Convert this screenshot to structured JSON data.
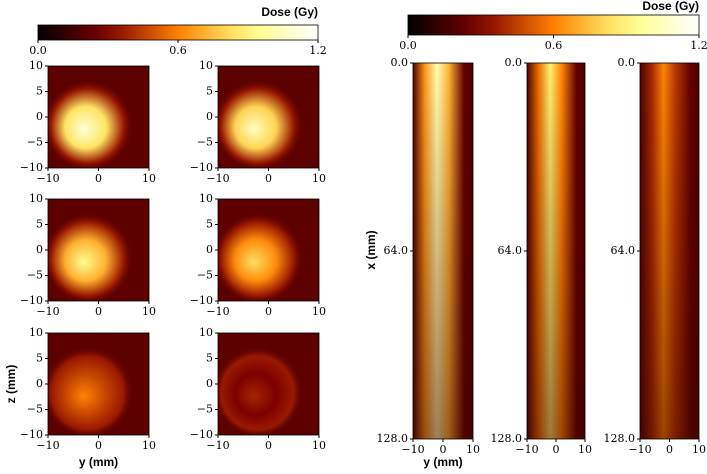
{
  "colorbars": [
    {
      "label": "Dose (Gy)",
      "lim": [
        0,
        1.2
      ],
      "ticks": [
        {
          "value": 0,
          "label": "0.0"
        },
        0.6,
        1.2
      ]
    },
    {
      "label": "Dose (Gy)",
      "lim": [
        0,
        1.2
      ],
      "ticks": [
        {
          "value": 0,
          "label": "0.0"
        },
        0.6,
        1.2
      ]
    }
  ],
  "chart_data": [
    {
      "type": "heatmap",
      "xlim": [
        -10,
        10
      ],
      "ylim": [
        -10,
        10
      ],
      "xticks": [
        {
          "value": -10,
          "label": "−10"
        },
        0,
        10
      ],
      "yticks": [
        {
          "value": -10,
          "label": "−10"
        },
        {
          "value": -5,
          "label": "−5"
        },
        0,
        5,
        10
      ]
    },
    {
      "type": "heatmap",
      "xlim": [
        -10,
        10
      ],
      "ylim": [
        -10,
        10
      ],
      "xticks": [
        {
          "value": -10,
          "label": "−10"
        },
        0,
        10
      ],
      "yticks": [
        {
          "value": -10,
          "label": "−10"
        },
        {
          "value": -5,
          "label": "−5"
        },
        0,
        5,
        10
      ]
    },
    {
      "type": "heatmap",
      "xlim": [
        -10,
        10
      ],
      "ylim": [
        -10,
        10
      ],
      "xticks": [
        {
          "value": -10,
          "label": "−10"
        },
        0,
        10
      ],
      "yticks": [
        {
          "value": -10,
          "label": "−10"
        },
        {
          "value": -5,
          "label": "−5"
        },
        0,
        5,
        10
      ]
    },
    {
      "type": "heatmap",
      "xlim": [
        -10,
        10
      ],
      "ylim": [
        -10,
        10
      ],
      "xticks": [
        {
          "value": -10,
          "label": "−10"
        },
        0,
        10
      ],
      "yticks": [
        {
          "value": -10,
          "label": "−10"
        },
        {
          "value": -5,
          "label": "−5"
        },
        0,
        5,
        10
      ]
    },
    {
      "type": "heatmap",
      "xlim": [
        -10,
        10
      ],
      "ylim": [
        -10,
        10
      ],
      "xticks": [
        {
          "value": -10,
          "label": "−10"
        },
        0,
        10
      ],
      "yticks": [
        {
          "value": -10,
          "label": "−10"
        },
        {
          "value": -5,
          "label": "−5"
        },
        0,
        5,
        10
      ],
      "xlabel": "y (mm)",
      "ylabel": "z (mm)"
    },
    {
      "type": "heatmap",
      "xlim": [
        -10,
        10
      ],
      "ylim": [
        -10,
        10
      ],
      "xticks": [
        {
          "value": -10,
          "label": "−10"
        },
        0,
        10
      ],
      "yticks": [
        {
          "value": -10,
          "label": "−10"
        },
        {
          "value": -5,
          "label": "−5"
        },
        0,
        5,
        10
      ]
    },
    {
      "type": "heatmap",
      "xlim": [
        -10,
        10
      ],
      "ylim": [
        128,
        0
      ],
      "xticks": [
        {
          "value": -10,
          "label": "−10"
        },
        0,
        10
      ],
      "yticks": [
        {
          "value": 0,
          "label": "0.0"
        },
        {
          "value": 64,
          "label": "64.0"
        },
        {
          "value": 128,
          "label": "128.0"
        }
      ],
      "xlabel": "y (mm)",
      "ylabel": "x (mm)"
    },
    {
      "type": "heatmap",
      "xlim": [
        -10,
        10
      ],
      "ylim": [
        128,
        0
      ],
      "xticks": [
        {
          "value": -10,
          "label": "−10"
        },
        0,
        10
      ],
      "yticks": [
        {
          "value": 0,
          "label": "0.0"
        },
        {
          "value": 64,
          "label": "64.0"
        },
        {
          "value": 128,
          "label": "128.0"
        }
      ]
    },
    {
      "type": "heatmap",
      "xlim": [
        -10,
        10
      ],
      "ylim": [
        128,
        0
      ],
      "xticks": [
        {
          "value": -10,
          "label": "−10"
        },
        0,
        10
      ],
      "yticks": [
        {
          "value": 0,
          "label": "0.0"
        },
        {
          "value": 64,
          "label": "64.0"
        },
        {
          "value": 128,
          "label": "128.0"
        }
      ]
    }
  ]
}
